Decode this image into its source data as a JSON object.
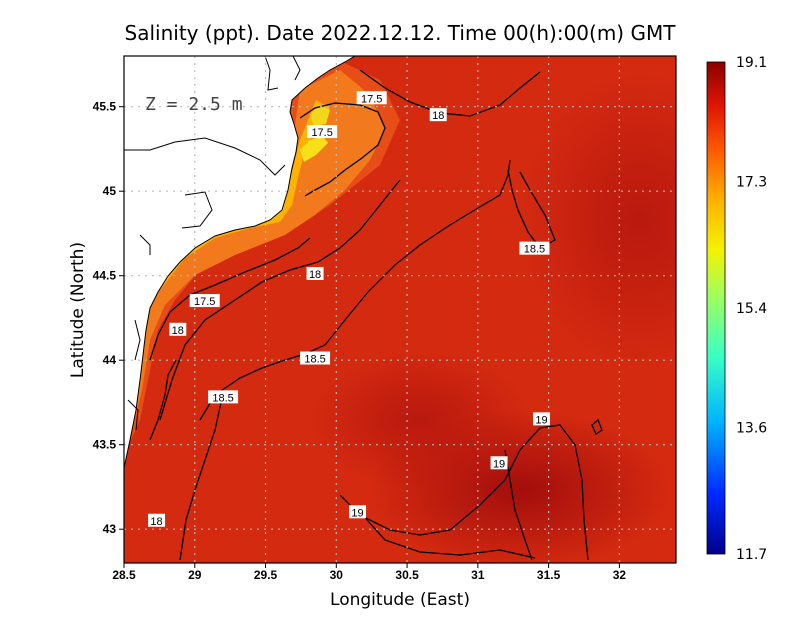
{
  "chart_data": {
    "type": "heatmap",
    "title": "Salinity (ppt). Date 2022.12.12. Time 00(h):00(m) GMT",
    "xlabel": "Longitude (East)",
    "ylabel": "Latitude (North)",
    "xlim": [
      28.5,
      32.4
    ],
    "ylim": [
      42.8,
      45.8
    ],
    "xticks": [
      28.5,
      29,
      29.5,
      30,
      30.5,
      31,
      31.5,
      32
    ],
    "xtick_labels": [
      "28.5",
      "29",
      "29.5",
      "30",
      "30.5",
      "31",
      "31.5",
      "32"
    ],
    "yticks": [
      43,
      43.5,
      44,
      44.5,
      45,
      45.5
    ],
    "ytick_labels": [
      "43",
      "43.5",
      "44",
      "44.5",
      "45",
      "45.5"
    ],
    "grid": true,
    "annotation": "Z = 2.5 m",
    "colorbar": {
      "min": 11.7,
      "max": 19.1,
      "tick_values": [
        19.1,
        17.3,
        15.4,
        13.6,
        11.7
      ],
      "tick_labels": [
        "19.1",
        "17.3",
        "15.4",
        "13.6",
        "11.7"
      ]
    },
    "contour_levels": [
      17.5,
      18,
      18.5,
      19
    ],
    "contour_labels": [
      {
        "text": "17.5",
        "lon": 30.25,
        "lat": 45.55
      },
      {
        "text": "17.5",
        "lon": 29.9,
        "lat": 45.35
      },
      {
        "text": "18",
        "lon": 30.72,
        "lat": 45.45
      },
      {
        "text": "18.5",
        "lon": 31.4,
        "lat": 44.66
      },
      {
        "text": "18",
        "lon": 29.85,
        "lat": 44.51
      },
      {
        "text": "17.5",
        "lon": 29.07,
        "lat": 44.35
      },
      {
        "text": "18",
        "lon": 28.88,
        "lat": 44.18
      },
      {
        "text": "18.5",
        "lon": 29.85,
        "lat": 44.01
      },
      {
        "text": "18.5",
        "lon": 29.2,
        "lat": 43.78
      },
      {
        "text": "19",
        "lon": 31.45,
        "lat": 43.65
      },
      {
        "text": "19",
        "lon": 31.15,
        "lat": 43.39
      },
      {
        "text": "19",
        "lon": 30.15,
        "lat": 43.1
      },
      {
        "text": "18",
        "lon": 28.73,
        "lat": 43.05
      }
    ],
    "colors": {
      "ocean_main": "#d42a10",
      "ocean_deep": "#a50f0f",
      "coastal": "#f06a18",
      "coastal_band": "#ffb300",
      "land": "#ffffff"
    }
  }
}
